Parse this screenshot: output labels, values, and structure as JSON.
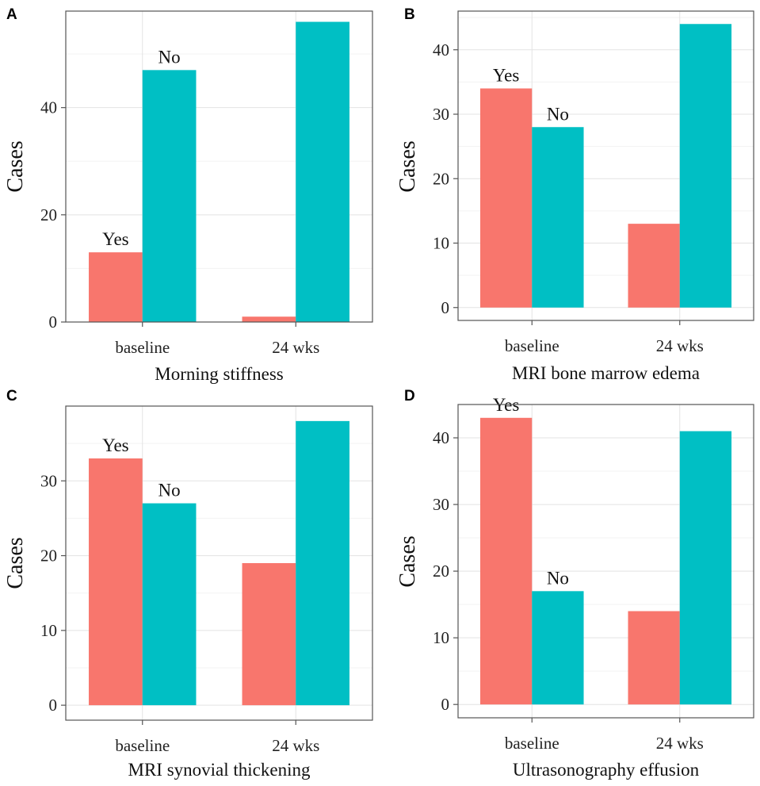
{
  "chart_data": [
    {
      "panel": "A",
      "type": "bar",
      "categories": [
        "baseline",
        "24 wks"
      ],
      "series": [
        {
          "name": "Yes",
          "color": "#F8766D",
          "values": [
            13,
            1
          ]
        },
        {
          "name": "No",
          "color": "#00BFC4",
          "values": [
            47,
            56
          ]
        }
      ],
      "xlabel": "Morning stiffness",
      "ylabel": "Cases",
      "ylim": [
        0,
        58
      ],
      "yticks": [
        0,
        20,
        40
      ],
      "bar_labels": [
        {
          "text": "Yes",
          "series": 0,
          "category": 0
        },
        {
          "text": "No",
          "series": 1,
          "category": 0
        }
      ]
    },
    {
      "panel": "B",
      "type": "bar",
      "categories": [
        "baseline",
        "24 wks"
      ],
      "series": [
        {
          "name": "Yes",
          "color": "#F8766D",
          "values": [
            34,
            13
          ]
        },
        {
          "name": "No",
          "color": "#00BFC4",
          "values": [
            28,
            44
          ]
        }
      ],
      "xlabel": "MRI bone marrow edema",
      "ylabel": "Cases",
      "ylim": [
        -2,
        46
      ],
      "yticks": [
        0,
        10,
        20,
        30,
        40
      ],
      "bar_labels": [
        {
          "text": "Yes",
          "series": 0,
          "category": 0
        },
        {
          "text": "No",
          "series": 1,
          "category": 0
        }
      ]
    },
    {
      "panel": "C",
      "type": "bar",
      "categories": [
        "baseline",
        "24 wks"
      ],
      "series": [
        {
          "name": "Yes",
          "color": "#F8766D",
          "values": [
            33,
            19
          ]
        },
        {
          "name": "No",
          "color": "#00BFC4",
          "values": [
            27,
            38
          ]
        }
      ],
      "xlabel": "MRI synovial thickening",
      "ylabel": "Cases",
      "ylim": [
        -2,
        40
      ],
      "yticks": [
        0,
        10,
        20,
        30
      ],
      "bar_labels": [
        {
          "text": "Yes",
          "series": 0,
          "category": 0
        },
        {
          "text": "No",
          "series": 1,
          "category": 0
        }
      ]
    },
    {
      "panel": "D",
      "type": "bar",
      "categories": [
        "baseline",
        "24 wks"
      ],
      "series": [
        {
          "name": "Yes",
          "color": "#F8766D",
          "values": [
            43,
            14
          ]
        },
        {
          "name": "No",
          "color": "#00BFC4",
          "values": [
            17,
            41
          ]
        }
      ],
      "xlabel": "Ultrasonography effusion",
      "ylabel": "Cases",
      "ylim": [
        -2,
        45
      ],
      "yticks": [
        0,
        10,
        20,
        30,
        40
      ],
      "bar_labels": [
        {
          "text": "Yes",
          "series": 0,
          "category": 0
        },
        {
          "text": "No",
          "series": 1,
          "category": 0
        }
      ]
    }
  ]
}
